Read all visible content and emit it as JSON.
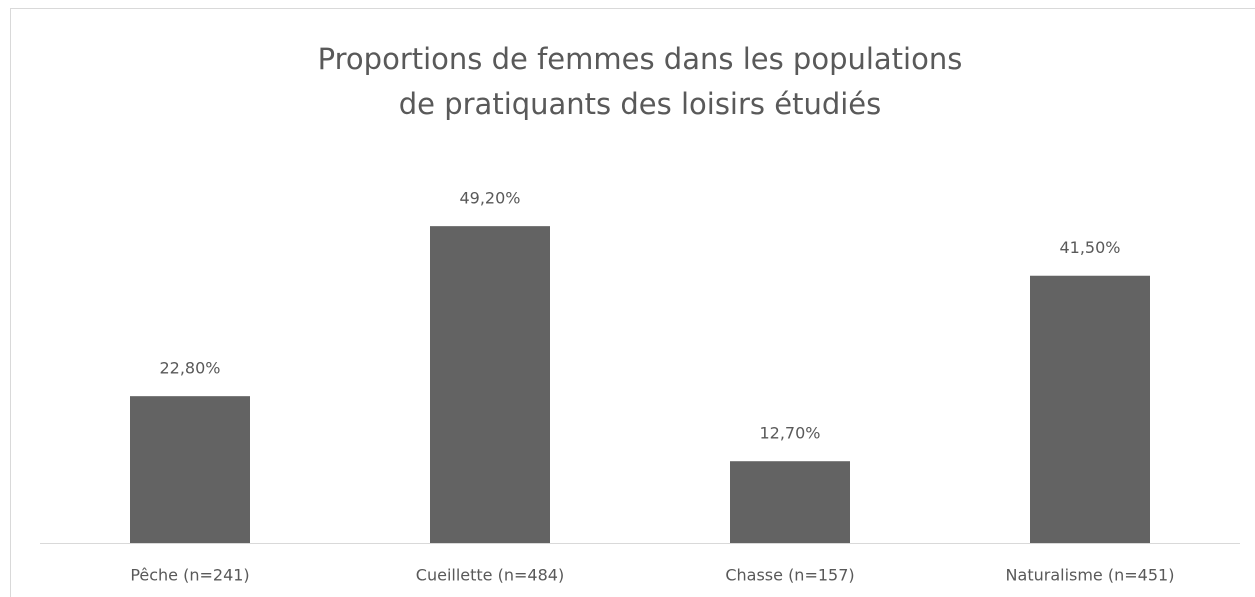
{
  "chart_data": {
    "type": "bar",
    "title": [
      "Proportions de femmes dans les populations",
      "de pratiquants des loisirs étudiés"
    ],
    "categories": [
      "Pêche (n=241)",
      "Cueillette (n=484)",
      "Chasse (n=157)",
      "Naturalisme (n=451)"
    ],
    "values": [
      22.8,
      49.2,
      12.7,
      41.5
    ],
    "value_labels": [
      "22,80%",
      "49,20%",
      "12,70%",
      "41,50%"
    ],
    "color": "#636363",
    "ylim": [
      0,
      60
    ]
  }
}
